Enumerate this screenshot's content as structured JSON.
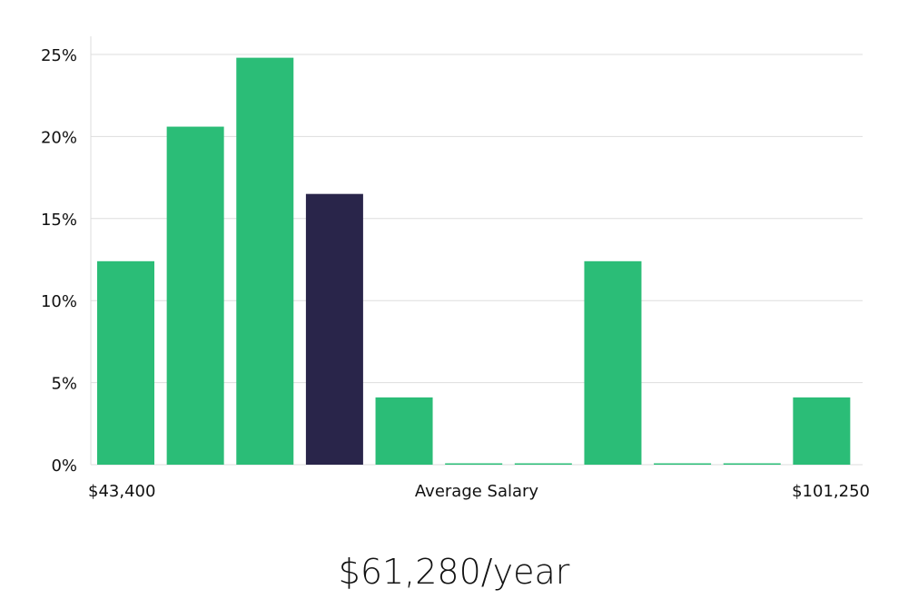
{
  "chart_data": {
    "type": "bar",
    "title": "",
    "xlabel": "Average Salary",
    "ylabel": "",
    "x_min_label": "$43,400",
    "x_max_label": "$101,250",
    "ylim": [
      0,
      25
    ],
    "yticks": [
      "0%",
      "5%",
      "10%",
      "15%",
      "20%",
      "25%"
    ],
    "ytick_values": [
      0,
      5,
      10,
      15,
      20,
      25
    ],
    "grid": true,
    "values": [
      12.4,
      20.6,
      24.8,
      16.5,
      4.1,
      0,
      0,
      12.4,
      0,
      0,
      4.1
    ],
    "highlight_index": 3,
    "colors": {
      "bar": "#2bbd77",
      "highlight": "#29254a",
      "grid": "#dddddd"
    }
  },
  "summary": {
    "salary": "$61,280/year"
  }
}
